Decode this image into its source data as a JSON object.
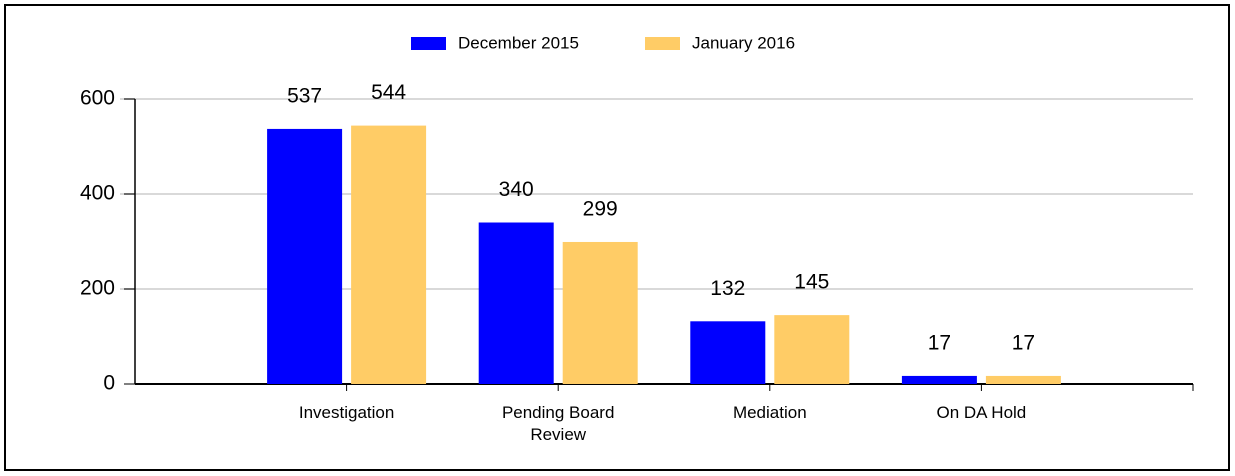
{
  "chart_data": {
    "type": "bar",
    "categories": [
      "Investigation",
      "Pending Board Review",
      "Mediation",
      "On DA Hold"
    ],
    "series": [
      {
        "name": "December 2015",
        "color": "#0000ff",
        "values": [
          537,
          340,
          132,
          17
        ]
      },
      {
        "name": "January 2016",
        "color": "#ffcc66",
        "values": [
          544,
          299,
          145,
          17
        ]
      }
    ],
    "ylim": [
      0,
      600
    ],
    "yticks": [
      0,
      200,
      400,
      600
    ],
    "grid": true,
    "legend": "top"
  }
}
